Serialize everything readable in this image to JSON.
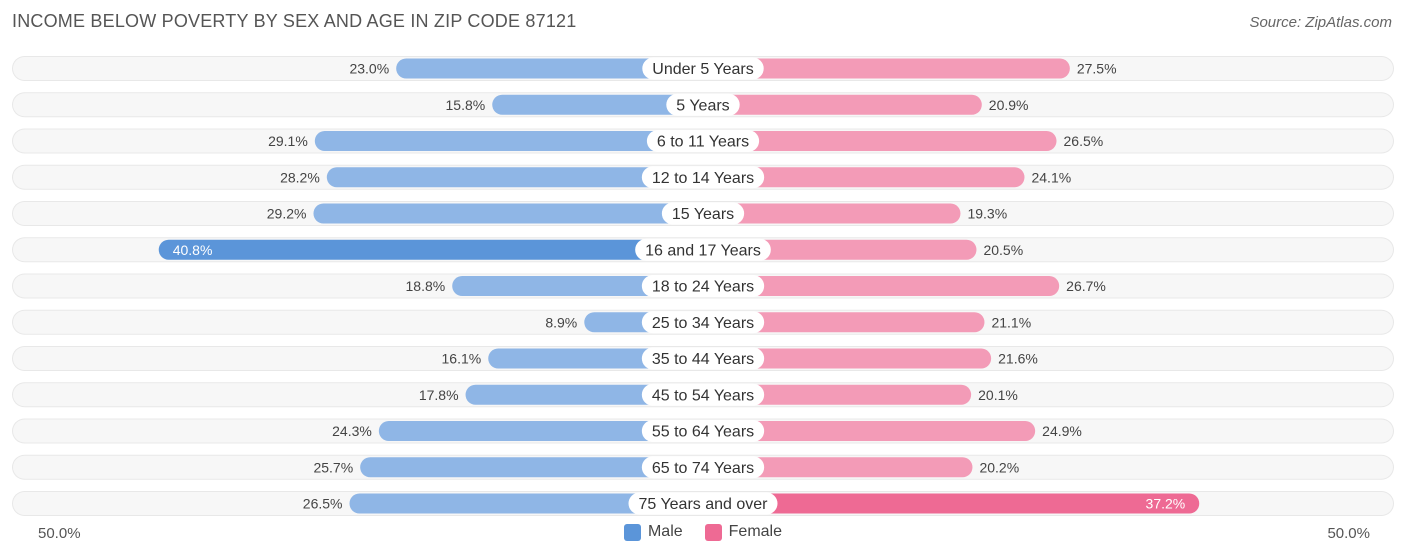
{
  "title": "INCOME BELOW POVERTY BY SEX AND AGE IN ZIP CODE 87121",
  "source": "Source: ZipAtlas.com",
  "axis": {
    "left_label": "50.0%",
    "right_label": "50.0%"
  },
  "legend": {
    "male_label": "Male",
    "female_label": "Female"
  },
  "colors": {
    "male": "#8fb6e6",
    "male_strong": "#5b95d9",
    "female": "#f39bb7",
    "female_strong": "#ee6a94",
    "row_bg": "#f0f0f0"
  },
  "chart_data": {
    "type": "bar",
    "orientation": "diverging-horizontal",
    "xlim": [
      -50,
      50
    ],
    "categories": [
      "Under 5 Years",
      "5 Years",
      "6 to 11 Years",
      "12 to 14 Years",
      "15 Years",
      "16 and 17 Years",
      "18 to 24 Years",
      "25 to 34 Years",
      "35 to 44 Years",
      "45 to 54 Years",
      "55 to 64 Years",
      "65 to 74 Years",
      "75 Years and over"
    ],
    "series": [
      {
        "name": "Male",
        "values": [
          23.0,
          15.8,
          29.1,
          28.2,
          29.2,
          40.8,
          18.8,
          8.9,
          16.1,
          17.8,
          24.3,
          25.7,
          26.5
        ],
        "labels": [
          "23.0%",
          "15.8%",
          "29.1%",
          "28.2%",
          "29.2%",
          "40.8%",
          "18.8%",
          "8.9%",
          "16.1%",
          "17.8%",
          "24.3%",
          "25.7%",
          "26.5%"
        ]
      },
      {
        "name": "Female",
        "values": [
          27.5,
          20.9,
          26.5,
          24.1,
          19.3,
          20.5,
          26.7,
          21.1,
          21.6,
          20.1,
          24.9,
          20.2,
          37.2
        ],
        "labels": [
          "27.5%",
          "20.9%",
          "26.5%",
          "24.1%",
          "19.3%",
          "20.5%",
          "26.7%",
          "21.1%",
          "21.6%",
          "20.1%",
          "24.9%",
          "20.2%",
          "37.2%"
        ]
      }
    ]
  }
}
